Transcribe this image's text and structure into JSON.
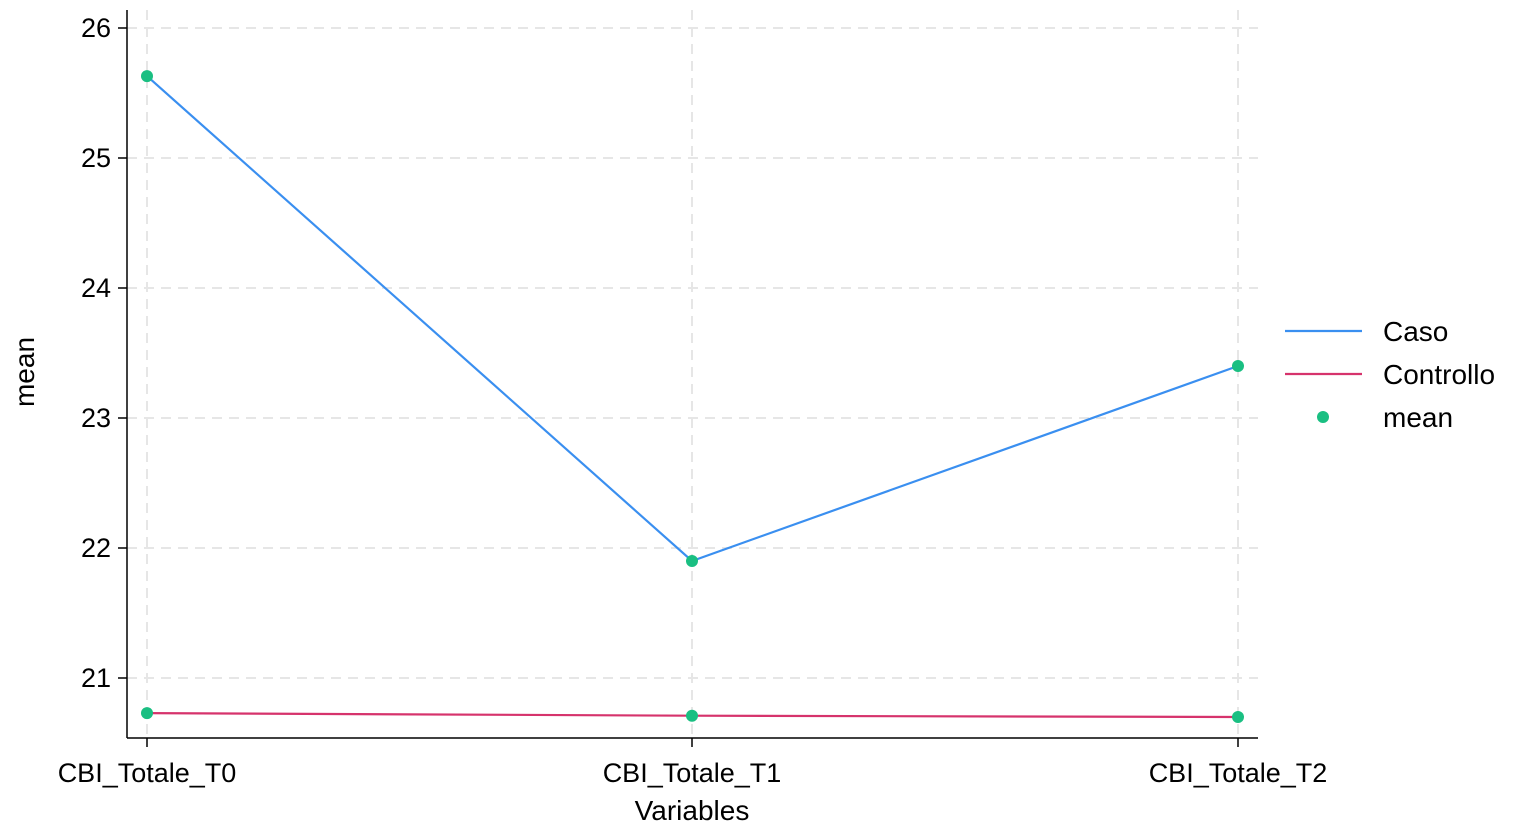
{
  "chart_data": {
    "type": "line",
    "xlabel": "Variables",
    "ylabel": "mean",
    "categories": [
      "CBI_Totale_T0",
      "CBI_Totale_T1",
      "CBI_Totale_T2"
    ],
    "yticks": [
      21,
      22,
      23,
      24,
      25,
      26
    ],
    "ylim": [
      20.55,
      26.15
    ],
    "grid": true,
    "legend_position": "right",
    "series": [
      {
        "name": "Caso",
        "values": [
          25.63,
          21.9,
          23.4
        ],
        "color": "#3a8ff0"
      },
      {
        "name": "Controllo",
        "values": [
          20.73,
          20.71,
          20.7
        ],
        "color": "#d6336c"
      }
    ],
    "markers": {
      "name": "mean",
      "color": "#1abf82"
    }
  }
}
